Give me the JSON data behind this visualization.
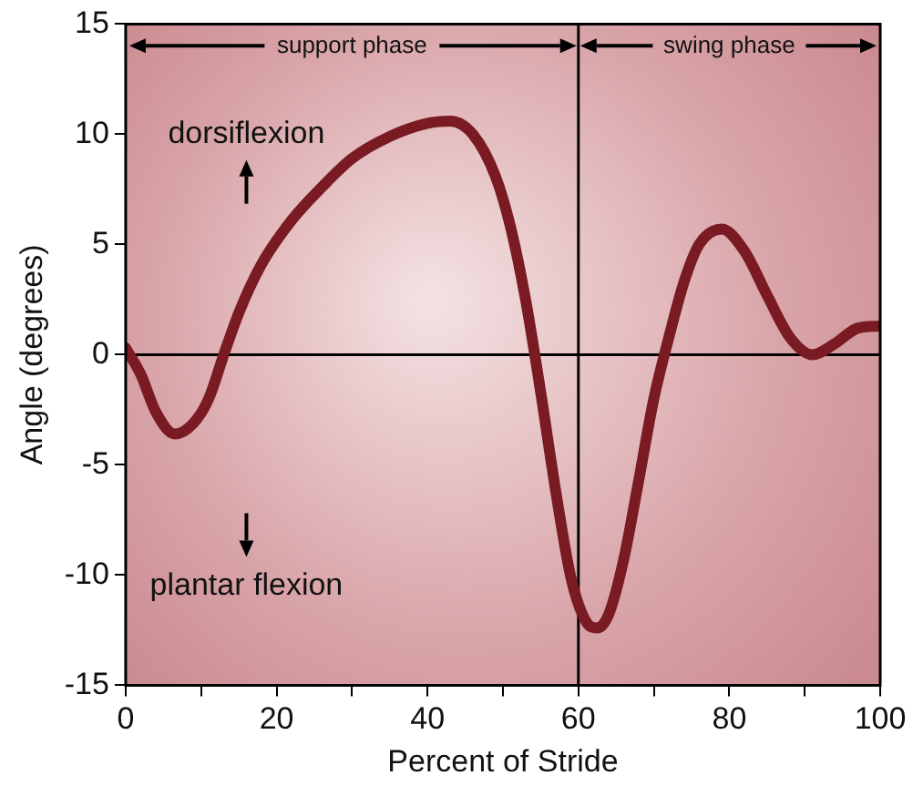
{
  "chart_data": {
    "type": "line",
    "xlabel": "Percent of Stride",
    "ylabel": "Angle (degrees)",
    "x": [
      0,
      2,
      4,
      6.5,
      9,
      11,
      13,
      15,
      18,
      22,
      26,
      30,
      35,
      40,
      43,
      46,
      49,
      51,
      53,
      55,
      57,
      59,
      61,
      62.5,
      64,
      66,
      68,
      70,
      72,
      74,
      76,
      79,
      82,
      85,
      88,
      91,
      94,
      97,
      100
    ],
    "series": [
      {
        "color": "#7a1a22",
        "values": [
          0.3,
          -0.9,
          -2.6,
          -3.6,
          -3.1,
          -2.0,
          0,
          1.9,
          4.1,
          6.1,
          7.6,
          8.9,
          9.9,
          10.5,
          10.6,
          10.0,
          8.1,
          5.8,
          2.5,
          -1.7,
          -6.2,
          -10.1,
          -12.1,
          -12.4,
          -11.8,
          -9.3,
          -5.7,
          -2.0,
          0.8,
          3.3,
          5.0,
          5.7,
          4.7,
          2.7,
          0.8,
          0,
          0.5,
          1.2,
          1.3
        ]
      }
    ],
    "xlim": [
      0,
      100
    ],
    "xticks": [
      0,
      {
        "value": 10,
        "label": null
      },
      20,
      {
        "value": 30,
        "label": null
      },
      40,
      {
        "value": 50,
        "label": null
      },
      60,
      {
        "value": 70,
        "label": null
      },
      80,
      {
        "value": 90,
        "label": null
      },
      100
    ],
    "ylim": [
      -15,
      15
    ],
    "yticks": [
      -15,
      -10,
      -5,
      0,
      5,
      10,
      15
    ],
    "ref_lines": [
      {
        "axis": "x",
        "value": 60,
        "color": "#000000"
      },
      {
        "axis": "y",
        "value": 0,
        "color": "#000000"
      }
    ],
    "annotations": [
      "support phase",
      "swing phase",
      "dorsiflexion",
      "plantar flexion"
    ],
    "grid": false,
    "legend": false,
    "marker": "none",
    "line_style": "solid"
  }
}
